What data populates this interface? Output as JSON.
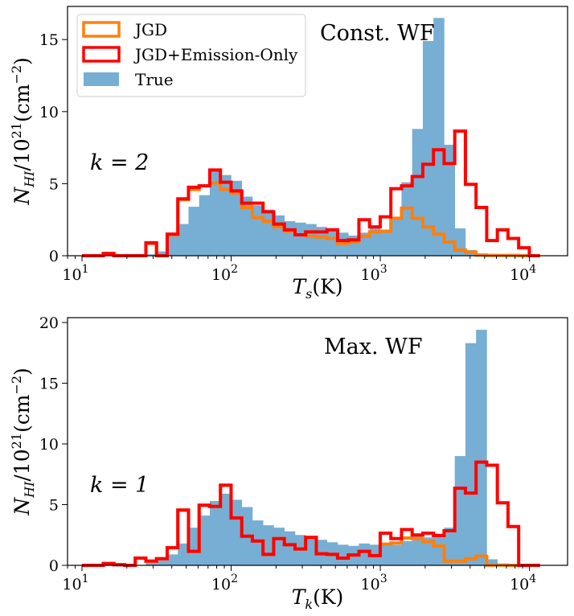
{
  "colors": {
    "true_fill": "#77aed3",
    "jgd": "#ff7f0e",
    "jgd_emission": "#ff0000"
  },
  "legend": {
    "items": [
      {
        "label": "JGD",
        "style": "outline-orange"
      },
      {
        "label": "JGD+Emission-Only",
        "style": "outline-red"
      },
      {
        "label": "True",
        "style": "filled-blue"
      }
    ]
  },
  "chart_data": [
    {
      "type": "histogram",
      "panel": "top",
      "annotation": "Const. WF",
      "k_label": "k = 2",
      "xlabel": "T_s (K)",
      "xlabel_main": "T",
      "xlabel_sub": "s",
      "xlabel_unit": "(K)",
      "ylabel": "N_HI/10^21 (cm^-2)",
      "xscale": "log",
      "xlim": [
        8,
        18000
      ],
      "ylim": [
        0,
        17.3
      ],
      "yticks": [
        0,
        5,
        10,
        15
      ],
      "xticks": [
        {
          "value": 10,
          "base": "10",
          "exp": "1"
        },
        {
          "value": 100,
          "base": "10",
          "exp": "2"
        },
        {
          "value": 1000,
          "base": "10",
          "exp": "3"
        },
        {
          "value": 10000,
          "base": "10",
          "exp": "4"
        }
      ],
      "log_bin_edges": [
        1.0,
        1.0714,
        1.1428,
        1.2142,
        1.2856,
        1.357,
        1.4284,
        1.4998,
        1.5712,
        1.6426,
        1.714,
        1.7854,
        1.8568,
        1.9282,
        1.9996,
        2.071,
        2.1424,
        2.2138,
        2.2852,
        2.3566,
        2.428,
        2.4994,
        2.5708,
        2.6422,
        2.7136,
        2.785,
        2.8564,
        2.9278,
        2.9992,
        3.0706,
        3.142,
        3.2134,
        3.2848,
        3.3562,
        3.4276,
        3.499,
        3.5704,
        3.6418,
        3.7132,
        3.7846,
        3.856,
        3.9274,
        3.9988,
        4.0702
      ],
      "series": [
        {
          "name": "True",
          "kind": "filled",
          "values": [
            0,
            0,
            0,
            0,
            0,
            0,
            0.1,
            0.3,
            1.4,
            2.2,
            3.4,
            4.2,
            5.9,
            5.6,
            5.2,
            4.1,
            3.5,
            3.2,
            2.8,
            2.4,
            2.3,
            2.2,
            2.0,
            1.8,
            1.6,
            1.4,
            1.6,
            1.9,
            1.8,
            2.6,
            5.1,
            8.8,
            14.9,
            16.5,
            7.7,
            1.9,
            0.4,
            0,
            0,
            0,
            0,
            0,
            0
          ]
        },
        {
          "name": "JGD",
          "kind": "outline",
          "values": [
            0,
            0,
            0.15,
            0,
            0,
            0,
            0.85,
            0,
            1.45,
            3.9,
            4.6,
            4.85,
            5.05,
            4.6,
            4.35,
            3.35,
            2.65,
            2.4,
            2.0,
            1.7,
            1.45,
            1.35,
            1.3,
            1.2,
            0.85,
            0.95,
            1.35,
            1.65,
            1.7,
            2.6,
            3.3,
            2.6,
            2.0,
            1.5,
            0.95,
            0.4,
            0.25,
            0.05,
            0.02,
            0.02,
            0.02,
            0,
            0
          ]
        },
        {
          "name": "JGD+Emission-Only",
          "kind": "outline",
          "values": [
            0,
            0,
            0.15,
            0,
            0,
            0,
            0.9,
            0,
            1.5,
            3.95,
            4.75,
            4.85,
            5.95,
            5.1,
            4.5,
            3.65,
            3.65,
            3.05,
            2.2,
            1.8,
            1.45,
            1.65,
            1.65,
            1.8,
            1.05,
            1.1,
            2.5,
            2.0,
            2.7,
            4.65,
            4.85,
            5.5,
            6.35,
            7.35,
            6.4,
            8.65,
            4.95,
            3.35,
            1.05,
            1.8,
            1.2,
            0.55,
            0
          ]
        }
      ]
    },
    {
      "type": "histogram",
      "panel": "bottom",
      "annotation": "Max. WF",
      "k_label": "k = 1",
      "xlabel": "T_k (K)",
      "xlabel_main": "T",
      "xlabel_sub": "k",
      "xlabel_unit": "(K)",
      "ylabel": "N_HI/10^21 (cm^-2)",
      "xscale": "log",
      "xlim": [
        8,
        18000
      ],
      "ylim": [
        0,
        20.4
      ],
      "yticks": [
        0,
        5,
        10,
        15,
        20
      ],
      "xticks": [
        {
          "value": 10,
          "base": "10",
          "exp": "1"
        },
        {
          "value": 100,
          "base": "10",
          "exp": "2"
        },
        {
          "value": 1000,
          "base": "10",
          "exp": "3"
        },
        {
          "value": 10000,
          "base": "10",
          "exp": "4"
        }
      ],
      "log_bin_edges": [
        1.0,
        1.0714,
        1.1428,
        1.2142,
        1.2856,
        1.357,
        1.4284,
        1.4998,
        1.5712,
        1.6426,
        1.714,
        1.7854,
        1.8568,
        1.9282,
        1.9996,
        2.071,
        2.1424,
        2.2138,
        2.2852,
        2.3566,
        2.428,
        2.4994,
        2.5708,
        2.6422,
        2.7136,
        2.785,
        2.8564,
        2.9278,
        2.9992,
        3.0706,
        3.142,
        3.2134,
        3.2848,
        3.3562,
        3.4276,
        3.499,
        3.5704,
        3.6418,
        3.7132,
        3.7846,
        3.856,
        3.9274,
        3.9988,
        4.0702
      ],
      "series": [
        {
          "name": "True",
          "kind": "filled",
          "values": [
            0,
            0,
            0,
            0,
            0,
            0,
            0.2,
            0.4,
            0.9,
            1.8,
            3.1,
            4.1,
            5.3,
            5.9,
            5.4,
            4.8,
            3.7,
            3.3,
            3.1,
            2.8,
            2.5,
            2.3,
            2.1,
            1.9,
            1.7,
            1.6,
            1.8,
            1.7,
            1.8,
            1.7,
            2.0,
            2.4,
            2.3,
            2.6,
            3.1,
            9.0,
            18.3,
            19.4,
            0.5,
            0.1,
            0,
            0,
            0
          ]
        },
        {
          "name": "JGD",
          "kind": "outline",
          "values": [
            0,
            0,
            0.15,
            0.05,
            0,
            0.6,
            0.35,
            0.55,
            1.45,
            4.55,
            1.15,
            4.95,
            4.85,
            6.6,
            3.9,
            2.4,
            2.0,
            0.9,
            2.2,
            1.7,
            1.35,
            2.3,
            0.95,
            0.9,
            0.6,
            0.85,
            1.15,
            0.8,
            1.75,
            1.85,
            2.25,
            2.2,
            1.95,
            1.6,
            0.35,
            0.35,
            0.55,
            0.75,
            0.02,
            0.02,
            0,
            0,
            0
          ]
        },
        {
          "name": "JGD+Emission-Only",
          "kind": "outline",
          "values": [
            0,
            0,
            0.15,
            0.05,
            0,
            0.6,
            0.35,
            0.55,
            1.45,
            4.55,
            1.15,
            4.95,
            4.85,
            6.6,
            3.9,
            2.4,
            2.0,
            0.9,
            2.2,
            1.7,
            1.35,
            2.3,
            0.95,
            0.9,
            0.6,
            0.85,
            1.15,
            0.8,
            2.65,
            2.2,
            2.95,
            2.5,
            2.65,
            2.45,
            2.85,
            6.35,
            5.95,
            8.5,
            8.25,
            5.15,
            3.2,
            0,
            0
          ]
        }
      ]
    }
  ]
}
